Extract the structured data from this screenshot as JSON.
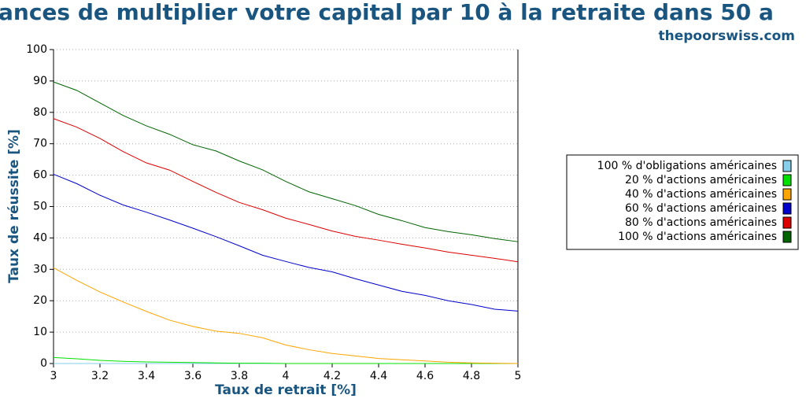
{
  "chart_data": {
    "type": "line",
    "title": "ances de multiplier votre capital par 10 à la retraite dans 50 a",
    "subtitle": "thepoorswiss.com",
    "x_label": "Taux de retrait [%]",
    "y_label": "Taux de réussite [%]",
    "x": [
      3,
      3.1,
      3.2,
      3.3,
      3.4,
      3.5,
      3.6,
      3.7,
      3.8,
      3.9,
      4,
      4.1,
      4.2,
      4.3,
      4.4,
      4.5,
      4.6,
      4.7,
      4.8,
      4.9,
      5
    ],
    "xlim": [
      3,
      5
    ],
    "xticks": [
      3,
      3.2,
      3.4,
      3.6,
      3.8,
      4,
      4.2,
      4.4,
      4.6,
      4.8,
      5
    ],
    "ylim": [
      0,
      100
    ],
    "yticks": [
      0,
      10,
      20,
      30,
      40,
      50,
      60,
      70,
      80,
      90,
      100
    ],
    "grid": true,
    "legend": "right",
    "series": [
      {
        "name": "100 % d'obligations américaines",
        "color": "#87ceeb",
        "values": [
          0,
          0,
          0,
          0,
          0,
          0,
          0,
          0,
          0,
          0,
          0,
          0,
          0,
          0,
          0,
          0,
          0,
          0,
          0,
          0,
          0
        ]
      },
      {
        "name": "20 % d'actions américaines",
        "color": "#00e000",
        "values": [
          1.9,
          1.5,
          1,
          0.7,
          0.5,
          0.4,
          0.3,
          0.2,
          0.1,
          0.1,
          0,
          0,
          0,
          0,
          0,
          0,
          0,
          0,
          0,
          0,
          0
        ]
      },
      {
        "name": "40 % d'actions américaines",
        "color": "#ffa500",
        "values": [
          30.5,
          26.5,
          22.8,
          19.6,
          16.6,
          13.8,
          11.8,
          10.3,
          9.6,
          8.2,
          5.9,
          4.4,
          3.2,
          2.4,
          1.6,
          1.2,
          0.8,
          0.4,
          0.2,
          0.1,
          0
        ]
      },
      {
        "name": "60 % d'actions américaines",
        "color": "#0000cc",
        "values": [
          60.3,
          57.3,
          53.6,
          50.5,
          48.2,
          45.7,
          43.1,
          40.4,
          37.5,
          34.5,
          32.5,
          30.6,
          29.2,
          27,
          25,
          23,
          21.7,
          20,
          18.8,
          17.3,
          16.7
        ]
      },
      {
        "name": "80 % d'actions américaines",
        "color": "#dd0000",
        "values": [
          78,
          75.3,
          71.7,
          67.5,
          63.9,
          61.6,
          58,
          54.5,
          51.3,
          49,
          46.3,
          44.3,
          42.2,
          40.5,
          39.3,
          38,
          36.8,
          35.5,
          34.5,
          33.5,
          32.4
        ]
      },
      {
        "name": "100 % d'actions américaines",
        "color": "#006400",
        "values": [
          89.7,
          87,
          83,
          79,
          75.7,
          73,
          69.7,
          67.7,
          64.5,
          61.7,
          58,
          54.7,
          52.5,
          50.3,
          47.5,
          45.5,
          43.3,
          42,
          41,
          39.8,
          38.8
        ]
      }
    ]
  }
}
